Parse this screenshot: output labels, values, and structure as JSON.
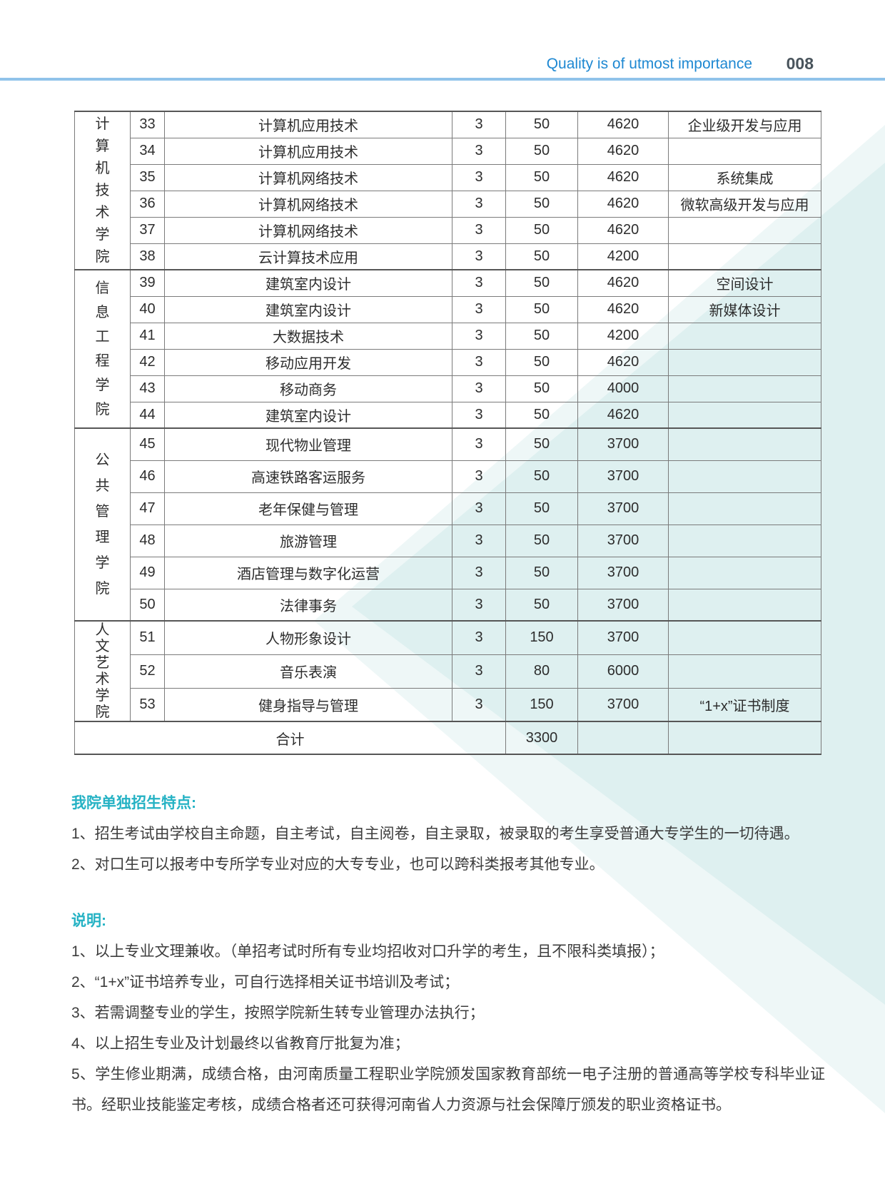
{
  "header": {
    "slogan": "Quality is of utmost importance",
    "page_number": "008"
  },
  "colors": {
    "slogan_blue": "#1e88d2",
    "rule_blue": "#90c3ea",
    "heading_teal": "#25b2c4",
    "triangle_main": "#def0f0",
    "triangle_light": "#eef7f7",
    "table_border_gray": "#7b7b7b",
    "body_text": "#3c3c3c"
  },
  "table": {
    "groups": [
      {
        "college": "计算机技术学院",
        "rows": [
          {
            "no": "33",
            "major": "计算机应用技术",
            "years": "3",
            "seats": "50",
            "fee": "4620",
            "remark": "企业级开发与应用"
          },
          {
            "no": "34",
            "major": "计算机应用技术",
            "years": "3",
            "seats": "50",
            "fee": "4620",
            "remark": ""
          },
          {
            "no": "35",
            "major": "计算机网络技术",
            "years": "3",
            "seats": "50",
            "fee": "4620",
            "remark": "系统集成"
          },
          {
            "no": "36",
            "major": "计算机网络技术",
            "years": "3",
            "seats": "50",
            "fee": "4620",
            "remark": "微软高级开发与应用"
          },
          {
            "no": "37",
            "major": "计算机网络技术",
            "years": "3",
            "seats": "50",
            "fee": "4620",
            "remark": ""
          },
          {
            "no": "38",
            "major": "云计算技术应用",
            "years": "3",
            "seats": "50",
            "fee": "4200",
            "remark": ""
          }
        ]
      },
      {
        "college": "信息工程学院",
        "rows": [
          {
            "no": "39",
            "major": "建筑室内设计",
            "years": "3",
            "seats": "50",
            "fee": "4620",
            "remark": "空间设计"
          },
          {
            "no": "40",
            "major": "建筑室内设计",
            "years": "3",
            "seats": "50",
            "fee": "4620",
            "remark": "新媒体设计"
          },
          {
            "no": "41",
            "major": "大数据技术",
            "years": "3",
            "seats": "50",
            "fee": "4200",
            "remark": ""
          },
          {
            "no": "42",
            "major": "移动应用开发",
            "years": "3",
            "seats": "50",
            "fee": "4620",
            "remark": ""
          },
          {
            "no": "43",
            "major": "移动商务",
            "years": "3",
            "seats": "50",
            "fee": "4000",
            "remark": ""
          },
          {
            "no": "44",
            "major": "建筑室内设计",
            "years": "3",
            "seats": "50",
            "fee": "4620",
            "remark": ""
          }
        ]
      },
      {
        "college": "公共管理学院",
        "rows": [
          {
            "no": "45",
            "major": "现代物业管理",
            "years": "3",
            "seats": "50",
            "fee": "3700",
            "remark": ""
          },
          {
            "no": "46",
            "major": "高速铁路客运服务",
            "years": "3",
            "seats": "50",
            "fee": "3700",
            "remark": ""
          },
          {
            "no": "47",
            "major": "老年保健与管理",
            "years": "3",
            "seats": "50",
            "fee": "3700",
            "remark": ""
          },
          {
            "no": "48",
            "major": "旅游管理",
            "years": "3",
            "seats": "50",
            "fee": "3700",
            "remark": ""
          },
          {
            "no": "49",
            "major": "酒店管理与数字化运营",
            "years": "3",
            "seats": "50",
            "fee": "3700",
            "remark": ""
          },
          {
            "no": "50",
            "major": "法律事务",
            "years": "3",
            "seats": "50",
            "fee": "3700",
            "remark": ""
          }
        ]
      },
      {
        "college": "人文艺术学院",
        "rows": [
          {
            "no": "51",
            "major": "人物形象设计",
            "years": "3",
            "seats": "150",
            "fee": "3700",
            "remark": ""
          },
          {
            "no": "52",
            "major": "音乐表演",
            "years": "3",
            "seats": "80",
            "fee": "6000",
            "remark": ""
          },
          {
            "no": "53",
            "major": "健身指导与管理",
            "years": "3",
            "seats": "150",
            "fee": "3700",
            "remark": "“1+x”证书制度"
          }
        ]
      }
    ],
    "total": {
      "label": "合计",
      "seats": "3300"
    }
  },
  "sections": [
    {
      "heading": "我院单独招生特点:",
      "items": [
        "1、招生考试由学校自主命题，自主考试，自主阅卷，自主录取，被录取的考生享受普通大专学生的一切待遇。",
        "2、对口生可以报考中专所学专业对应的大专专业，也可以跨科类报考其他专业。"
      ]
    },
    {
      "heading": "说明:",
      "items": [
        "1、以上专业文理兼收。（单招考试时所有专业均招收对口升学的考生，且不限科类填报）；",
        "2、“1+x”证书培养专业，可自行选择相关证书培训及考试；",
        "3、若需调整专业的学生，按照学院新生转专业管理办法执行；",
        "4、以上招生专业及计划最终以省教育厅批复为准；",
        "5、学生修业期满，成绩合格，由河南质量工程职业学院颁发国家教育部统一电子注册的普通高等学校专科毕业证书。经职业技能鉴定考核，成绩合格者还可获得河南省人力资源与社会保障厅颁发的职业资格证书。"
      ]
    }
  ]
}
